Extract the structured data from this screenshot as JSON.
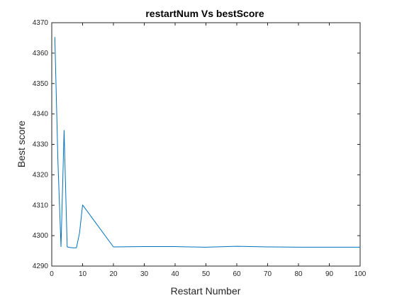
{
  "chart_data": {
    "type": "line",
    "title": "restartNum Vs bestScore",
    "xlabel": "Restart Number",
    "ylabel": "Best score",
    "xlim": [
      0,
      100
    ],
    "ylim": [
      4290,
      4370
    ],
    "xticks": [
      0,
      10,
      20,
      30,
      40,
      50,
      60,
      70,
      80,
      90,
      100
    ],
    "yticks": [
      4290,
      4300,
      4310,
      4320,
      4330,
      4340,
      4350,
      4360,
      4370
    ],
    "grid": false,
    "legend": "none",
    "line_color": "#0072BD",
    "series": [
      {
        "x": [
          1,
          2,
          3,
          4,
          5,
          6,
          7,
          8,
          9,
          10,
          20,
          30,
          40,
          50,
          60,
          70,
          80,
          90,
          100
        ],
        "y": [
          4365.2,
          4324.5,
          4296.4,
          4334.6,
          4296.3,
          4296.1,
          4296.0,
          4296.0,
          4300.8,
          4310.1,
          4296.3,
          4296.4,
          4296.4,
          4296.2,
          4296.5,
          4296.3,
          4296.2,
          4296.2,
          4296.2
        ]
      }
    ]
  }
}
